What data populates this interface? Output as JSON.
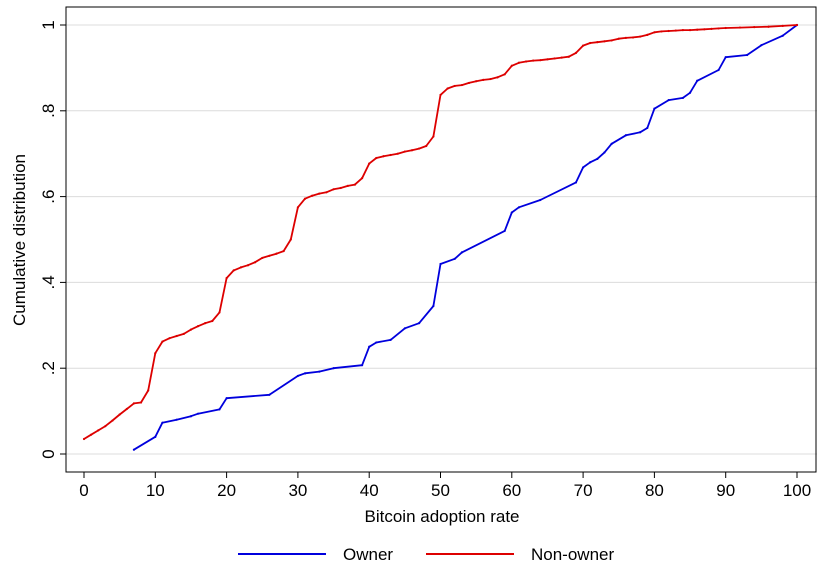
{
  "chart_data": {
    "type": "line",
    "xlabel": "Bitcoin adoption rate",
    "ylabel": "Cumulative distribution",
    "xlim": [
      0,
      100
    ],
    "ylim": [
      0,
      1
    ],
    "x_ticks": [
      0,
      10,
      20,
      30,
      40,
      50,
      60,
      70,
      80,
      90,
      100
    ],
    "x_tick_labels": [
      "0",
      "10",
      "20",
      "30",
      "40",
      "50",
      "60",
      "70",
      "80",
      "90",
      "100"
    ],
    "y_ticks": [
      0,
      0.2,
      0.4,
      0.6,
      0.8,
      1
    ],
    "y_tick_labels": [
      "0",
      ".2",
      ".4",
      ".6",
      ".8",
      "1"
    ],
    "grid": "horizontal",
    "legend_placement": "bottom",
    "series": [
      {
        "name": "Owner",
        "color": "#0000dd",
        "points": [
          [
            7,
            0.01
          ],
          [
            10,
            0.04
          ],
          [
            11,
            0.073
          ],
          [
            13,
            0.08
          ],
          [
            15,
            0.088
          ],
          [
            16,
            0.094
          ],
          [
            19,
            0.104
          ],
          [
            20,
            0.13
          ],
          [
            26,
            0.138
          ],
          [
            30,
            0.182
          ],
          [
            31,
            0.188
          ],
          [
            33,
            0.192
          ],
          [
            35,
            0.2
          ],
          [
            39,
            0.207
          ],
          [
            40,
            0.25
          ],
          [
            41,
            0.26
          ],
          [
            43,
            0.266
          ],
          [
            45,
            0.293
          ],
          [
            47,
            0.305
          ],
          [
            49,
            0.345
          ],
          [
            50,
            0.443
          ],
          [
            52,
            0.455
          ],
          [
            53,
            0.47
          ],
          [
            59,
            0.52
          ],
          [
            60,
            0.563
          ],
          [
            61,
            0.575
          ],
          [
            64,
            0.592
          ],
          [
            69,
            0.633
          ],
          [
            70,
            0.668
          ],
          [
            71,
            0.68
          ],
          [
            72,
            0.688
          ],
          [
            73,
            0.703
          ],
          [
            74,
            0.723
          ],
          [
            76,
            0.743
          ],
          [
            78,
            0.75
          ],
          [
            79,
            0.76
          ],
          [
            80,
            0.805
          ],
          [
            82,
            0.825
          ],
          [
            84,
            0.83
          ],
          [
            85,
            0.842
          ],
          [
            86,
            0.87
          ],
          [
            89,
            0.895
          ],
          [
            90,
            0.925
          ],
          [
            93,
            0.93
          ],
          [
            95,
            0.953
          ],
          [
            98,
            0.975
          ],
          [
            100,
            1.0
          ]
        ]
      },
      {
        "name": "Non-owner",
        "color": "#dd0000",
        "points": [
          [
            0,
            0.035
          ],
          [
            1,
            0.045
          ],
          [
            2,
            0.055
          ],
          [
            3,
            0.065
          ],
          [
            4,
            0.078
          ],
          [
            5,
            0.092
          ],
          [
            6,
            0.105
          ],
          [
            7,
            0.118
          ],
          [
            8,
            0.12
          ],
          [
            9,
            0.148
          ],
          [
            10,
            0.235
          ],
          [
            11,
            0.262
          ],
          [
            12,
            0.27
          ],
          [
            13,
            0.275
          ],
          [
            14,
            0.28
          ],
          [
            15,
            0.29
          ],
          [
            16,
            0.298
          ],
          [
            17,
            0.305
          ],
          [
            18,
            0.31
          ],
          [
            19,
            0.33
          ],
          [
            20,
            0.41
          ],
          [
            21,
            0.428
          ],
          [
            22,
            0.435
          ],
          [
            23,
            0.44
          ],
          [
            24,
            0.447
          ],
          [
            25,
            0.457
          ],
          [
            26,
            0.462
          ],
          [
            27,
            0.467
          ],
          [
            28,
            0.473
          ],
          [
            29,
            0.5
          ],
          [
            30,
            0.575
          ],
          [
            31,
            0.595
          ],
          [
            32,
            0.602
          ],
          [
            33,
            0.607
          ],
          [
            34,
            0.61
          ],
          [
            35,
            0.617
          ],
          [
            36,
            0.62
          ],
          [
            37,
            0.625
          ],
          [
            38,
            0.628
          ],
          [
            39,
            0.643
          ],
          [
            40,
            0.677
          ],
          [
            41,
            0.69
          ],
          [
            42,
            0.694
          ],
          [
            43,
            0.697
          ],
          [
            44,
            0.7
          ],
          [
            45,
            0.705
          ],
          [
            46,
            0.708
          ],
          [
            47,
            0.712
          ],
          [
            48,
            0.718
          ],
          [
            49,
            0.74
          ],
          [
            50,
            0.837
          ],
          [
            51,
            0.852
          ],
          [
            52,
            0.858
          ],
          [
            53,
            0.86
          ],
          [
            54,
            0.865
          ],
          [
            55,
            0.869
          ],
          [
            56,
            0.872
          ],
          [
            57,
            0.874
          ],
          [
            58,
            0.878
          ],
          [
            59,
            0.885
          ],
          [
            60,
            0.905
          ],
          [
            61,
            0.912
          ],
          [
            62,
            0.915
          ],
          [
            63,
            0.917
          ],
          [
            64,
            0.918
          ],
          [
            65,
            0.92
          ],
          [
            66,
            0.922
          ],
          [
            67,
            0.924
          ],
          [
            68,
            0.926
          ],
          [
            69,
            0.935
          ],
          [
            70,
            0.952
          ],
          [
            71,
            0.958
          ],
          [
            72,
            0.96
          ],
          [
            73,
            0.962
          ],
          [
            74,
            0.964
          ],
          [
            75,
            0.968
          ],
          [
            76,
            0.97
          ],
          [
            77,
            0.971
          ],
          [
            78,
            0.973
          ],
          [
            79,
            0.977
          ],
          [
            80,
            0.983
          ],
          [
            81,
            0.985
          ],
          [
            82,
            0.986
          ],
          [
            83,
            0.987
          ],
          [
            84,
            0.988
          ],
          [
            85,
            0.988
          ],
          [
            86,
            0.989
          ],
          [
            87,
            0.99
          ],
          [
            88,
            0.991
          ],
          [
            89,
            0.992
          ],
          [
            90,
            0.993
          ],
          [
            92,
            0.994
          ],
          [
            94,
            0.995
          ],
          [
            96,
            0.996
          ],
          [
            98,
            0.998
          ],
          [
            100,
            1.0
          ]
        ]
      }
    ]
  }
}
